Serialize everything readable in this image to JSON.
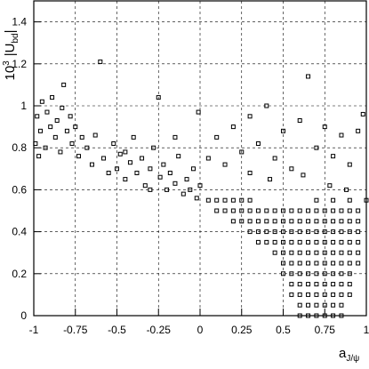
{
  "chart_data": {
    "type": "scatter",
    "ylabel_base": "10",
    "ylabel_sup": "3",
    "ylabel_main": "|U",
    "ylabel_sub": "bd",
    "ylabel_end": "|",
    "xlabel_main": "a",
    "xlabel_sub": "J/ψ",
    "xlim": [
      -1,
      1
    ],
    "ylim": [
      0,
      1.5
    ],
    "xticks": [
      -1,
      -0.75,
      -0.5,
      -0.25,
      0,
      0.25,
      0.5,
      0.75,
      1
    ],
    "yticks": [
      0,
      0.2,
      0.4,
      0.6,
      0.8,
      1,
      1.2,
      1.4
    ],
    "grid": true,
    "color": "#000000",
    "x": [
      -0.98,
      -0.96,
      -0.95,
      -0.93,
      -0.92,
      -0.9,
      -0.89,
      -0.87,
      -0.86,
      -0.84,
      -0.83,
      -0.82,
      -0.8,
      -0.78,
      -0.77,
      -0.75,
      -0.73,
      -0.71,
      -0.99,
      -0.97,
      -0.68,
      -0.65,
      -0.63,
      -0.6,
      -0.58,
      -0.55,
      -0.52,
      -0.5,
      -0.48,
      -0.45,
      -0.42,
      -0.4,
      -0.38,
      -0.35,
      -0.33,
      -0.3,
      -0.28,
      -0.25,
      -0.24,
      -0.22,
      -0.2,
      -0.18,
      -0.15,
      -0.13,
      -0.1,
      -0.08,
      -0.06,
      -0.04,
      -0.02,
      0,
      -0.01,
      -0.3,
      -0.15,
      -0.45,
      0.05,
      0.1,
      0.15,
      0.2,
      0.25,
      0.3,
      0.35,
      0.4,
      0.45,
      0.5,
      0.55,
      0.6,
      0.65,
      0.7,
      0.75,
      0.8,
      0.85,
      0.9,
      0.95,
      0.98,
      0.42,
      0.62,
      0.78,
      0.88,
      0.3,
      0.05,
      0.1,
      0.15,
      0.2,
      0.25,
      0.3,
      0.7,
      0.8,
      0.9,
      1,
      0.1,
      0.15,
      0.2,
      0.25,
      0.3,
      0.35,
      0.4,
      0.45,
      0.5,
      0.55,
      0.6,
      0.65,
      0.7,
      0.75,
      0.8,
      0.85,
      0.9,
      0.95,
      0.2,
      0.25,
      0.3,
      0.35,
      0.4,
      0.45,
      0.5,
      0.55,
      0.6,
      0.65,
      0.7,
      0.75,
      0.8,
      0.85,
      0.9,
      0.95,
      0.3,
      0.35,
      0.4,
      0.45,
      0.5,
      0.55,
      0.6,
      0.65,
      0.7,
      0.75,
      0.8,
      0.85,
      0.9,
      0.95,
      0.35,
      0.4,
      0.45,
      0.5,
      0.55,
      0.6,
      0.65,
      0.7,
      0.75,
      0.8,
      0.85,
      0.9,
      0.95,
      0.45,
      0.5,
      0.55,
      0.6,
      0.65,
      0.7,
      0.75,
      0.8,
      0.85,
      0.9,
      0.95,
      0.5,
      0.55,
      0.6,
      0.65,
      0.7,
      0.75,
      0.8,
      0.85,
      0.9,
      0.95,
      0.5,
      0.55,
      0.6,
      0.65,
      0.7,
      0.75,
      0.8,
      0.85,
      0.9,
      0.55,
      0.6,
      0.65,
      0.7,
      0.75,
      0.8,
      0.85,
      0.9,
      0.55,
      0.6,
      0.65,
      0.7,
      0.75,
      0.8,
      0.85,
      0.9,
      0.6,
      0.65,
      0.7,
      0.75,
      0.8,
      0.85,
      0.6,
      0.65,
      0.7,
      0.75,
      0.8,
      0.85
    ],
    "values": [
      0.95,
      0.88,
      1.02,
      0.8,
      0.97,
      0.9,
      1.04,
      0.85,
      0.93,
      0.78,
      0.99,
      1.1,
      0.88,
      0.95,
      0.82,
      0.9,
      0.76,
      0.85,
      0.82,
      0.76,
      0.8,
      0.72,
      0.86,
      1.21,
      0.75,
      0.68,
      0.82,
      0.7,
      0.77,
      0.65,
      0.73,
      0.85,
      0.68,
      0.75,
      0.62,
      0.7,
      0.8,
      1.04,
      0.66,
      0.72,
      0.6,
      0.68,
      0.63,
      0.76,
      0.58,
      0.65,
      0.6,
      0.7,
      0.56,
      0.62,
      0.97,
      0.6,
      0.85,
      0.78,
      0.75,
      0.85,
      0.72,
      0.9,
      0.78,
      0.68,
      0.82,
      1.0,
      0.75,
      0.88,
      0.7,
      0.93,
      1.14,
      0.8,
      0.9,
      0.76,
      0.86,
      0.72,
      0.88,
      0.96,
      0.65,
      0.67,
      0.62,
      0.6,
      0.95,
      0.55,
      0.55,
      0.55,
      0.55,
      0.55,
      0.55,
      0.55,
      0.55,
      0.55,
      0.55,
      0.5,
      0.5,
      0.5,
      0.5,
      0.5,
      0.5,
      0.5,
      0.5,
      0.5,
      0.5,
      0.5,
      0.5,
      0.5,
      0.5,
      0.5,
      0.5,
      0.5,
      0.5,
      0.45,
      0.45,
      0.45,
      0.45,
      0.45,
      0.45,
      0.45,
      0.45,
      0.45,
      0.45,
      0.45,
      0.45,
      0.45,
      0.45,
      0.45,
      0.45,
      0.4,
      0.4,
      0.4,
      0.4,
      0.4,
      0.4,
      0.4,
      0.4,
      0.4,
      0.4,
      0.4,
      0.4,
      0.4,
      0.4,
      0.35,
      0.35,
      0.35,
      0.35,
      0.35,
      0.35,
      0.35,
      0.35,
      0.35,
      0.35,
      0.35,
      0.35,
      0.35,
      0.3,
      0.3,
      0.3,
      0.3,
      0.3,
      0.3,
      0.3,
      0.3,
      0.3,
      0.3,
      0.3,
      0.25,
      0.25,
      0.25,
      0.25,
      0.25,
      0.25,
      0.25,
      0.25,
      0.25,
      0.25,
      0.2,
      0.2,
      0.2,
      0.2,
      0.2,
      0.2,
      0.2,
      0.2,
      0.2,
      0.15,
      0.15,
      0.15,
      0.15,
      0.15,
      0.15,
      0.15,
      0.15,
      0.1,
      0.1,
      0.1,
      0.1,
      0.1,
      0.1,
      0.1,
      0.1,
      0.05,
      0.05,
      0.05,
      0.05,
      0.05,
      0.05,
      0,
      0,
      0,
      0,
      0,
      0
    ]
  }
}
